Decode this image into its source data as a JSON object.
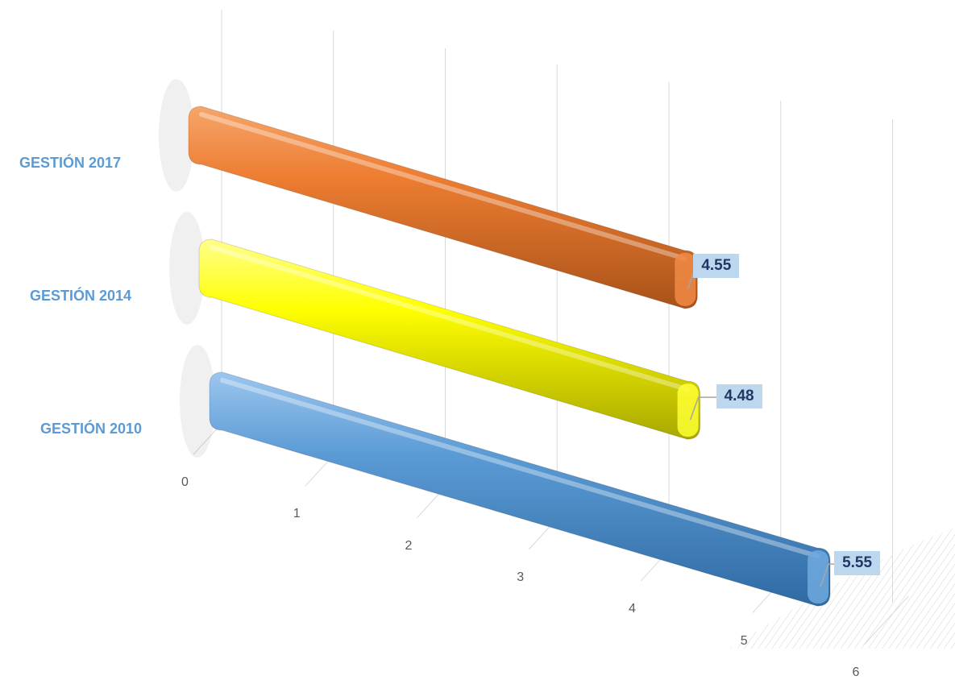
{
  "chart_data": {
    "type": "bar",
    "orientation": "horizontal",
    "style": "3d-cylinder",
    "categories": [
      "GESTIÓN 2010",
      "GESTIÓN 2014",
      "GESTIÓN 2017"
    ],
    "values": [
      5.55,
      4.48,
      4.55
    ],
    "data_labels": [
      "5.55",
      "4.48",
      "4.55"
    ],
    "xticks": [
      "0",
      "1",
      "2",
      "3",
      "4",
      "5",
      "6"
    ],
    "xlim": [
      0,
      6
    ],
    "title": "",
    "xlabel": "",
    "ylabel": "",
    "grid": true,
    "legend": "none"
  },
  "colors": {
    "bar_2010": "#5b9bd5",
    "bar_2014": "#ffff00",
    "bar_2017": "#ed7d31",
    "category_label": "#5b9bd5",
    "data_label_bg": "#bdd7ee",
    "data_label_text": "#1f3864",
    "gridline": "#d9d9d9",
    "tick_text": "#595959"
  }
}
